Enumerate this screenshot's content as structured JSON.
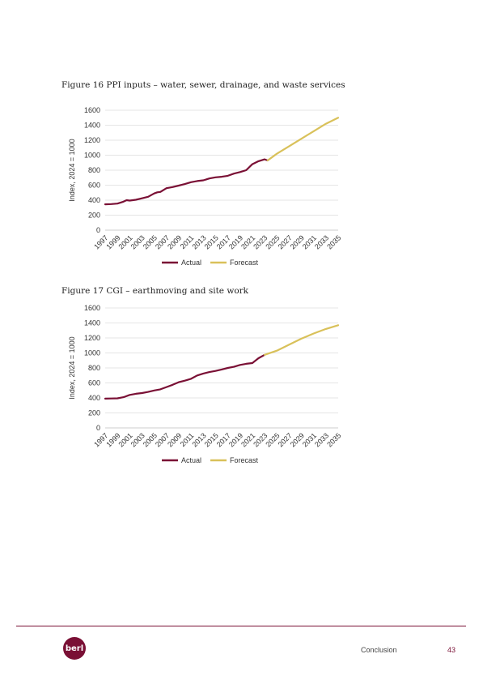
{
  "figures": [
    {
      "title": "Figure 16 PPI inputs – water, sewer, drainage, and waste services"
    },
    {
      "title": "Figure 17 CGI – earthmoving and site work"
    }
  ],
  "chart_data": [
    {
      "type": "line",
      "title": "",
      "ylabel": "Index, 2024 = 1000",
      "xlabel": "",
      "ylim": [
        0,
        1600
      ],
      "yticks": [
        0,
        200,
        400,
        600,
        800,
        1000,
        1200,
        1400,
        1600
      ],
      "xlim": [
        1997,
        2035
      ],
      "xticks": [
        1997,
        1999,
        2001,
        2003,
        2005,
        2007,
        2009,
        2011,
        2013,
        2015,
        2017,
        2019,
        2021,
        2023,
        2025,
        2027,
        2029,
        2031,
        2033,
        2035
      ],
      "grid": true,
      "legend": "bottom",
      "series": [
        {
          "name": "Actual",
          "color": "#7a1035",
          "x": [
            1997,
            1998,
            1999,
            2000,
            2000.5,
            2001,
            2002,
            2003,
            2004,
            2005,
            2005.5,
            2006,
            2007,
            2008,
            2009,
            2010,
            2011,
            2012,
            2013,
            2014,
            2015,
            2016,
            2017,
            2018,
            2019,
            2020,
            2021,
            2022,
            2023,
            2023.5
          ],
          "y": [
            345,
            348,
            355,
            380,
            400,
            395,
            405,
            425,
            445,
            490,
            505,
            510,
            560,
            575,
            595,
            615,
            640,
            655,
            665,
            690,
            705,
            712,
            725,
            755,
            775,
            800,
            880,
            920,
            945,
            930
          ]
        },
        {
          "name": "Forecast",
          "color": "#d9c15a",
          "x": [
            2023.5,
            2025,
            2027,
            2029,
            2031,
            2033,
            2035
          ],
          "y": [
            930,
            1020,
            1120,
            1220,
            1320,
            1420,
            1500
          ]
        }
      ]
    },
    {
      "type": "line",
      "title": "",
      "ylabel": "Index, 2024 = 1000",
      "xlabel": "",
      "ylim": [
        0,
        1600
      ],
      "yticks": [
        0,
        200,
        400,
        600,
        800,
        1000,
        1200,
        1400,
        1600
      ],
      "xlim": [
        1997,
        2035
      ],
      "xticks": [
        1997,
        1999,
        2001,
        2003,
        2005,
        2007,
        2009,
        2011,
        2013,
        2015,
        2017,
        2019,
        2021,
        2023,
        2025,
        2027,
        2029,
        2031,
        2033,
        2035
      ],
      "grid": true,
      "legend": "bottom",
      "series": [
        {
          "name": "Actual",
          "color": "#7a1035",
          "x": [
            1997,
            1998,
            1999,
            2000,
            2001,
            2002,
            2003,
            2004,
            2005,
            2006,
            2007,
            2008,
            2009,
            2010,
            2011,
            2012,
            2013,
            2014,
            2015,
            2016,
            2017,
            2018,
            2019,
            2020,
            2021,
            2022,
            2023
          ],
          "y": [
            390,
            392,
            395,
            410,
            440,
            455,
            465,
            480,
            500,
            515,
            545,
            575,
            610,
            630,
            655,
            700,
            725,
            745,
            760,
            780,
            800,
            815,
            840,
            855,
            865,
            930,
            975
          ]
        },
        {
          "name": "Forecast",
          "color": "#d9c15a",
          "x": [
            2023,
            2025,
            2027,
            2029,
            2031,
            2033,
            2035
          ],
          "y": [
            975,
            1030,
            1110,
            1190,
            1260,
            1320,
            1370
          ]
        }
      ]
    }
  ],
  "footer": {
    "logo_text": "berl",
    "section": "Conclusion",
    "page": "43"
  }
}
